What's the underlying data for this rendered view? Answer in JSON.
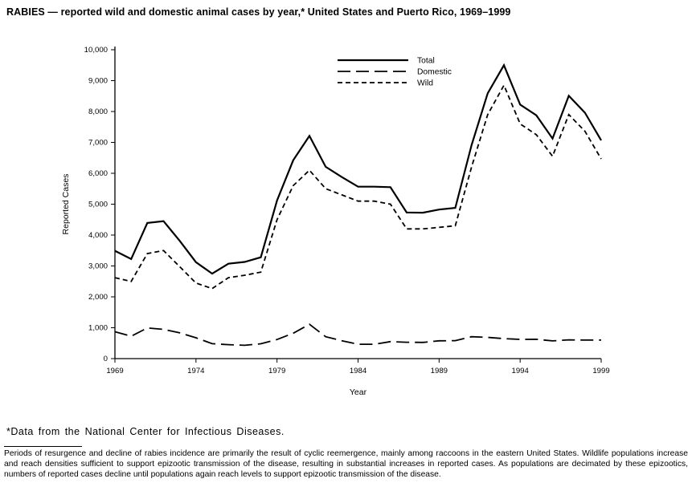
{
  "title": "RABIES — reported wild and domestic animal cases by year,* United States and Puerto Rico, 1969–1999",
  "footnote": "*Data from the National Center for Infectious Diseases.",
  "caption": "Periods of resurgence and decline of rabies incidence are primarily the result of cyclic reemergence, mainly among raccoons in the eastern United States. Wildlife populations increase and reach densities sufficient to support epizootic transmission of the disease, resulting in substantial increases in reported cases. As populations are decimated by these epizootics, numbers of reported cases decline until populations again reach levels to support epizootic transmission of the disease.",
  "chart_data": {
    "type": "line",
    "title": "",
    "xlabel": "Year",
    "ylabel": "Reported Cases",
    "x_range": [
      1969,
      1999
    ],
    "ylim": [
      0,
      10000
    ],
    "grid": false,
    "legend_position": "inside-top-center",
    "line_color": "#000000",
    "x": [
      1969,
      1970,
      1971,
      1972,
      1973,
      1974,
      1975,
      1976,
      1977,
      1978,
      1979,
      1980,
      1981,
      1982,
      1983,
      1984,
      1985,
      1986,
      1987,
      1988,
      1989,
      1990,
      1991,
      1992,
      1993,
      1994,
      1995,
      1996,
      1997,
      1998,
      1999
    ],
    "x_ticks": [
      1969,
      1974,
      1979,
      1984,
      1989,
      1994,
      1999
    ],
    "y_ticks": [
      0,
      1000,
      2000,
      3000,
      4000,
      5000,
      6000,
      7000,
      8000,
      9000,
      10000
    ],
    "y_tick_labels": [
      "0",
      "1,000",
      "2,000",
      "3,000",
      "4,000",
      "5,000",
      "6,000",
      "7,000",
      "8,000",
      "9,000",
      "10,000"
    ],
    "series": [
      {
        "name": "Total",
        "style": "solid",
        "values": [
          3490,
          3224,
          4392,
          4449,
          3810,
          3123,
          2751,
          3073,
          3130,
          3280,
          5119,
          6421,
          7211,
          6210,
          5878,
          5565,
          5565,
          5551,
          4729,
          4724,
          4826,
          4881,
          6910,
          8589,
          9498,
          8224,
          7877,
          7124,
          8509,
          7961,
          7067
        ]
      },
      {
        "name": "Domestic",
        "style": "long-dash",
        "values": [
          869,
          724,
          992,
          949,
          835,
          675,
          483,
          453,
          430,
          480,
          619,
          821,
          1111,
          710,
          578,
          465,
          465,
          551,
          529,
          524,
          576,
          581,
          710,
          689,
          648,
          624,
          627,
          574,
          609,
          601,
          601
        ]
      },
      {
        "name": "Wild",
        "style": "dash",
        "values": [
          2621,
          2500,
          3400,
          3500,
          2975,
          2448,
          2268,
          2620,
          2700,
          2800,
          4500,
          5600,
          6100,
          5500,
          5300,
          5100,
          5100,
          5000,
          4200,
          4200,
          4250,
          4300,
          6200,
          7900,
          8850,
          7600,
          7250,
          6550,
          7900,
          7360,
          6466
        ]
      }
    ]
  }
}
